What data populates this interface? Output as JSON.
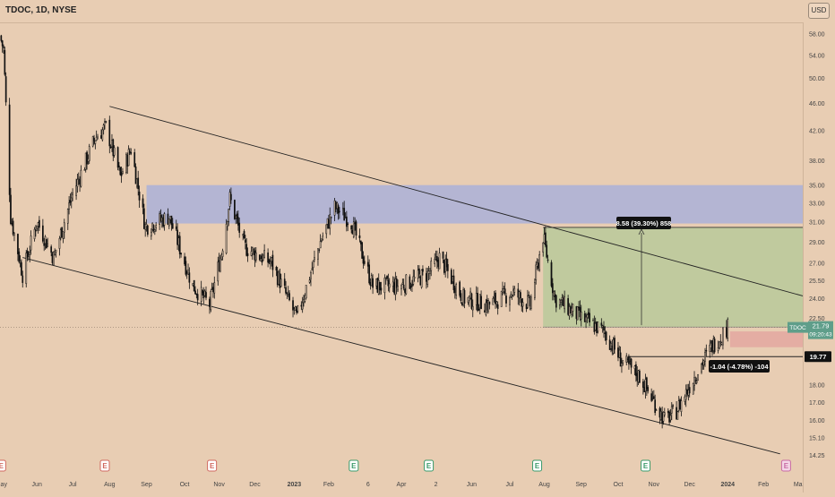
{
  "header": {
    "symbol_line": "TDOC, 1D, NYSE"
  },
  "currency_button": "USD",
  "colors": {
    "background": "#e8cdb3",
    "candle": "#111111",
    "channel_line": "#222222",
    "zone_blue": "#aab0d8",
    "zone_green": "#b8c99a",
    "zone_red": "#e3a7a0",
    "last_price_tag": "#5f9e8a",
    "label_bg": "#111111"
  },
  "price_axis_labels": [
    "58.00",
    "54.00",
    "50.00",
    "46.00",
    "42.00",
    "38.00",
    "35.00",
    "33.00",
    "31.00",
    "29.00",
    "27.00",
    "25.50",
    "24.00",
    "22.50",
    "19.77",
    "18.00",
    "17.00",
    "16.00",
    "15.10",
    "14.25"
  ],
  "time_axis_labels": [
    "May",
    "Jun",
    "Jul",
    "Aug",
    "Sep",
    "Oct",
    "Nov",
    "Dec",
    "2023",
    "Feb",
    "6",
    "Apr",
    "2",
    "Jun",
    "Jul",
    "Aug",
    "Sep",
    "Oct",
    "Nov",
    "Dec",
    "2024",
    "Feb",
    "Ma"
  ],
  "annotations": {
    "long_measure": "8.58 (39.30%) 858",
    "short_measure": "-1.04 (-4.78%) -104",
    "price_tag": "19.77",
    "last_symbol": "TDOC",
    "last_price": "21.79",
    "countdown": "09:20:43"
  },
  "event_markers": [
    {
      "date": "2022-05-02",
      "type": "dividend-split",
      "letter": "E"
    },
    {
      "date": "2022-07-28",
      "type": "earnings",
      "letter": "E"
    },
    {
      "date": "2022-10-26",
      "type": "earnings",
      "letter": "E"
    },
    {
      "date": "2023-02-22",
      "type": "earnings",
      "letter": "E"
    },
    {
      "date": "2023-04-26",
      "type": "earnings",
      "letter": "E"
    },
    {
      "date": "2023-07-26",
      "type": "earnings",
      "letter": "E"
    },
    {
      "date": "2023-10-25",
      "type": "earnings",
      "letter": "E"
    },
    {
      "date": "2024-02-20",
      "type": "earnings",
      "letter": "E"
    }
  ],
  "chart_data": {
    "type": "candlestick",
    "symbol": "TDOC",
    "timeframe": "1D",
    "exchange": "NYSE",
    "y_scale": "log",
    "ylim": [
      14.25,
      60.0
    ],
    "xlim": [
      "2022-05-01",
      "2024-03-05"
    ],
    "price_path": [
      {
        "date": "2022-05-01",
        "close": 57.5
      },
      {
        "date": "2022-05-04",
        "close": 55.0
      },
      {
        "date": "2022-05-10",
        "close": 31.5
      },
      {
        "date": "2022-05-20",
        "close": 26.0
      },
      {
        "date": "2022-06-01",
        "close": 31.0
      },
      {
        "date": "2022-06-15",
        "close": 27.5
      },
      {
        "date": "2022-07-01",
        "close": 34.0
      },
      {
        "date": "2022-07-20",
        "close": 41.0
      },
      {
        "date": "2022-07-29",
        "close": 42.5
      },
      {
        "date": "2022-08-10",
        "close": 36.0
      },
      {
        "date": "2022-08-19",
        "close": 39.5
      },
      {
        "date": "2022-08-31",
        "close": 30.5
      },
      {
        "date": "2022-09-20",
        "close": 31.5
      },
      {
        "date": "2022-10-10",
        "close": 25.0
      },
      {
        "date": "2022-10-24",
        "close": 23.5
      },
      {
        "date": "2022-11-03",
        "close": 28.0
      },
      {
        "date": "2022-11-10",
        "close": 33.5
      },
      {
        "date": "2022-11-22",
        "close": 28.5
      },
      {
        "date": "2022-12-15",
        "close": 27.0
      },
      {
        "date": "2023-01-05",
        "close": 22.5
      },
      {
        "date": "2023-01-25",
        "close": 29.0
      },
      {
        "date": "2023-02-06",
        "close": 32.5
      },
      {
        "date": "2023-02-20",
        "close": 31.0
      },
      {
        "date": "2023-03-10",
        "close": 25.0
      },
      {
        "date": "2023-04-01",
        "close": 25.0
      },
      {
        "date": "2023-04-25",
        "close": 26.0
      },
      {
        "date": "2023-05-05",
        "close": 27.5
      },
      {
        "date": "2023-05-25",
        "close": 24.0
      },
      {
        "date": "2023-06-15",
        "close": 23.5
      },
      {
        "date": "2023-07-05",
        "close": 24.5
      },
      {
        "date": "2023-07-20",
        "close": 23.5
      },
      {
        "date": "2023-07-31",
        "close": 29.5
      },
      {
        "date": "2023-08-10",
        "close": 24.0
      },
      {
        "date": "2023-09-01",
        "close": 22.5
      },
      {
        "date": "2023-09-20",
        "close": 21.5
      },
      {
        "date": "2023-10-05",
        "close": 19.5
      },
      {
        "date": "2023-10-20",
        "close": 18.5
      },
      {
        "date": "2023-11-10",
        "close": 16.0
      },
      {
        "date": "2023-11-20",
        "close": 16.5
      },
      {
        "date": "2023-12-05",
        "close": 18.5
      },
      {
        "date": "2023-12-20",
        "close": 20.5
      },
      {
        "date": "2024-01-02",
        "close": 21.79
      }
    ],
    "channel_upper": [
      {
        "date": "2022-08-01",
        "price": 45.5
      },
      {
        "date": "2024-03-05",
        "price": 24.2
      }
    ],
    "channel_lower": [
      {
        "date": "2022-05-20",
        "price": 27.5
      },
      {
        "date": "2024-02-15",
        "price": 14.3
      }
    ],
    "zones": [
      {
        "name": "supply",
        "from": "2022-09-01",
        "to": "2024-03-05",
        "low": 30.8,
        "high": 35.0
      },
      {
        "name": "long-target",
        "from": "2023-07-31",
        "to": "2024-03-05",
        "low": 21.82,
        "high": 30.4
      },
      {
        "name": "short-stop",
        "from": "2024-01-04",
        "to": "2024-03-05",
        "low": 20.4,
        "high": 21.5
      }
    ],
    "levels": [
      {
        "name": "support",
        "price": 19.77,
        "from": "2023-10-10",
        "to": "2024-03-05"
      },
      {
        "name": "last",
        "price": 21.79
      }
    ]
  }
}
